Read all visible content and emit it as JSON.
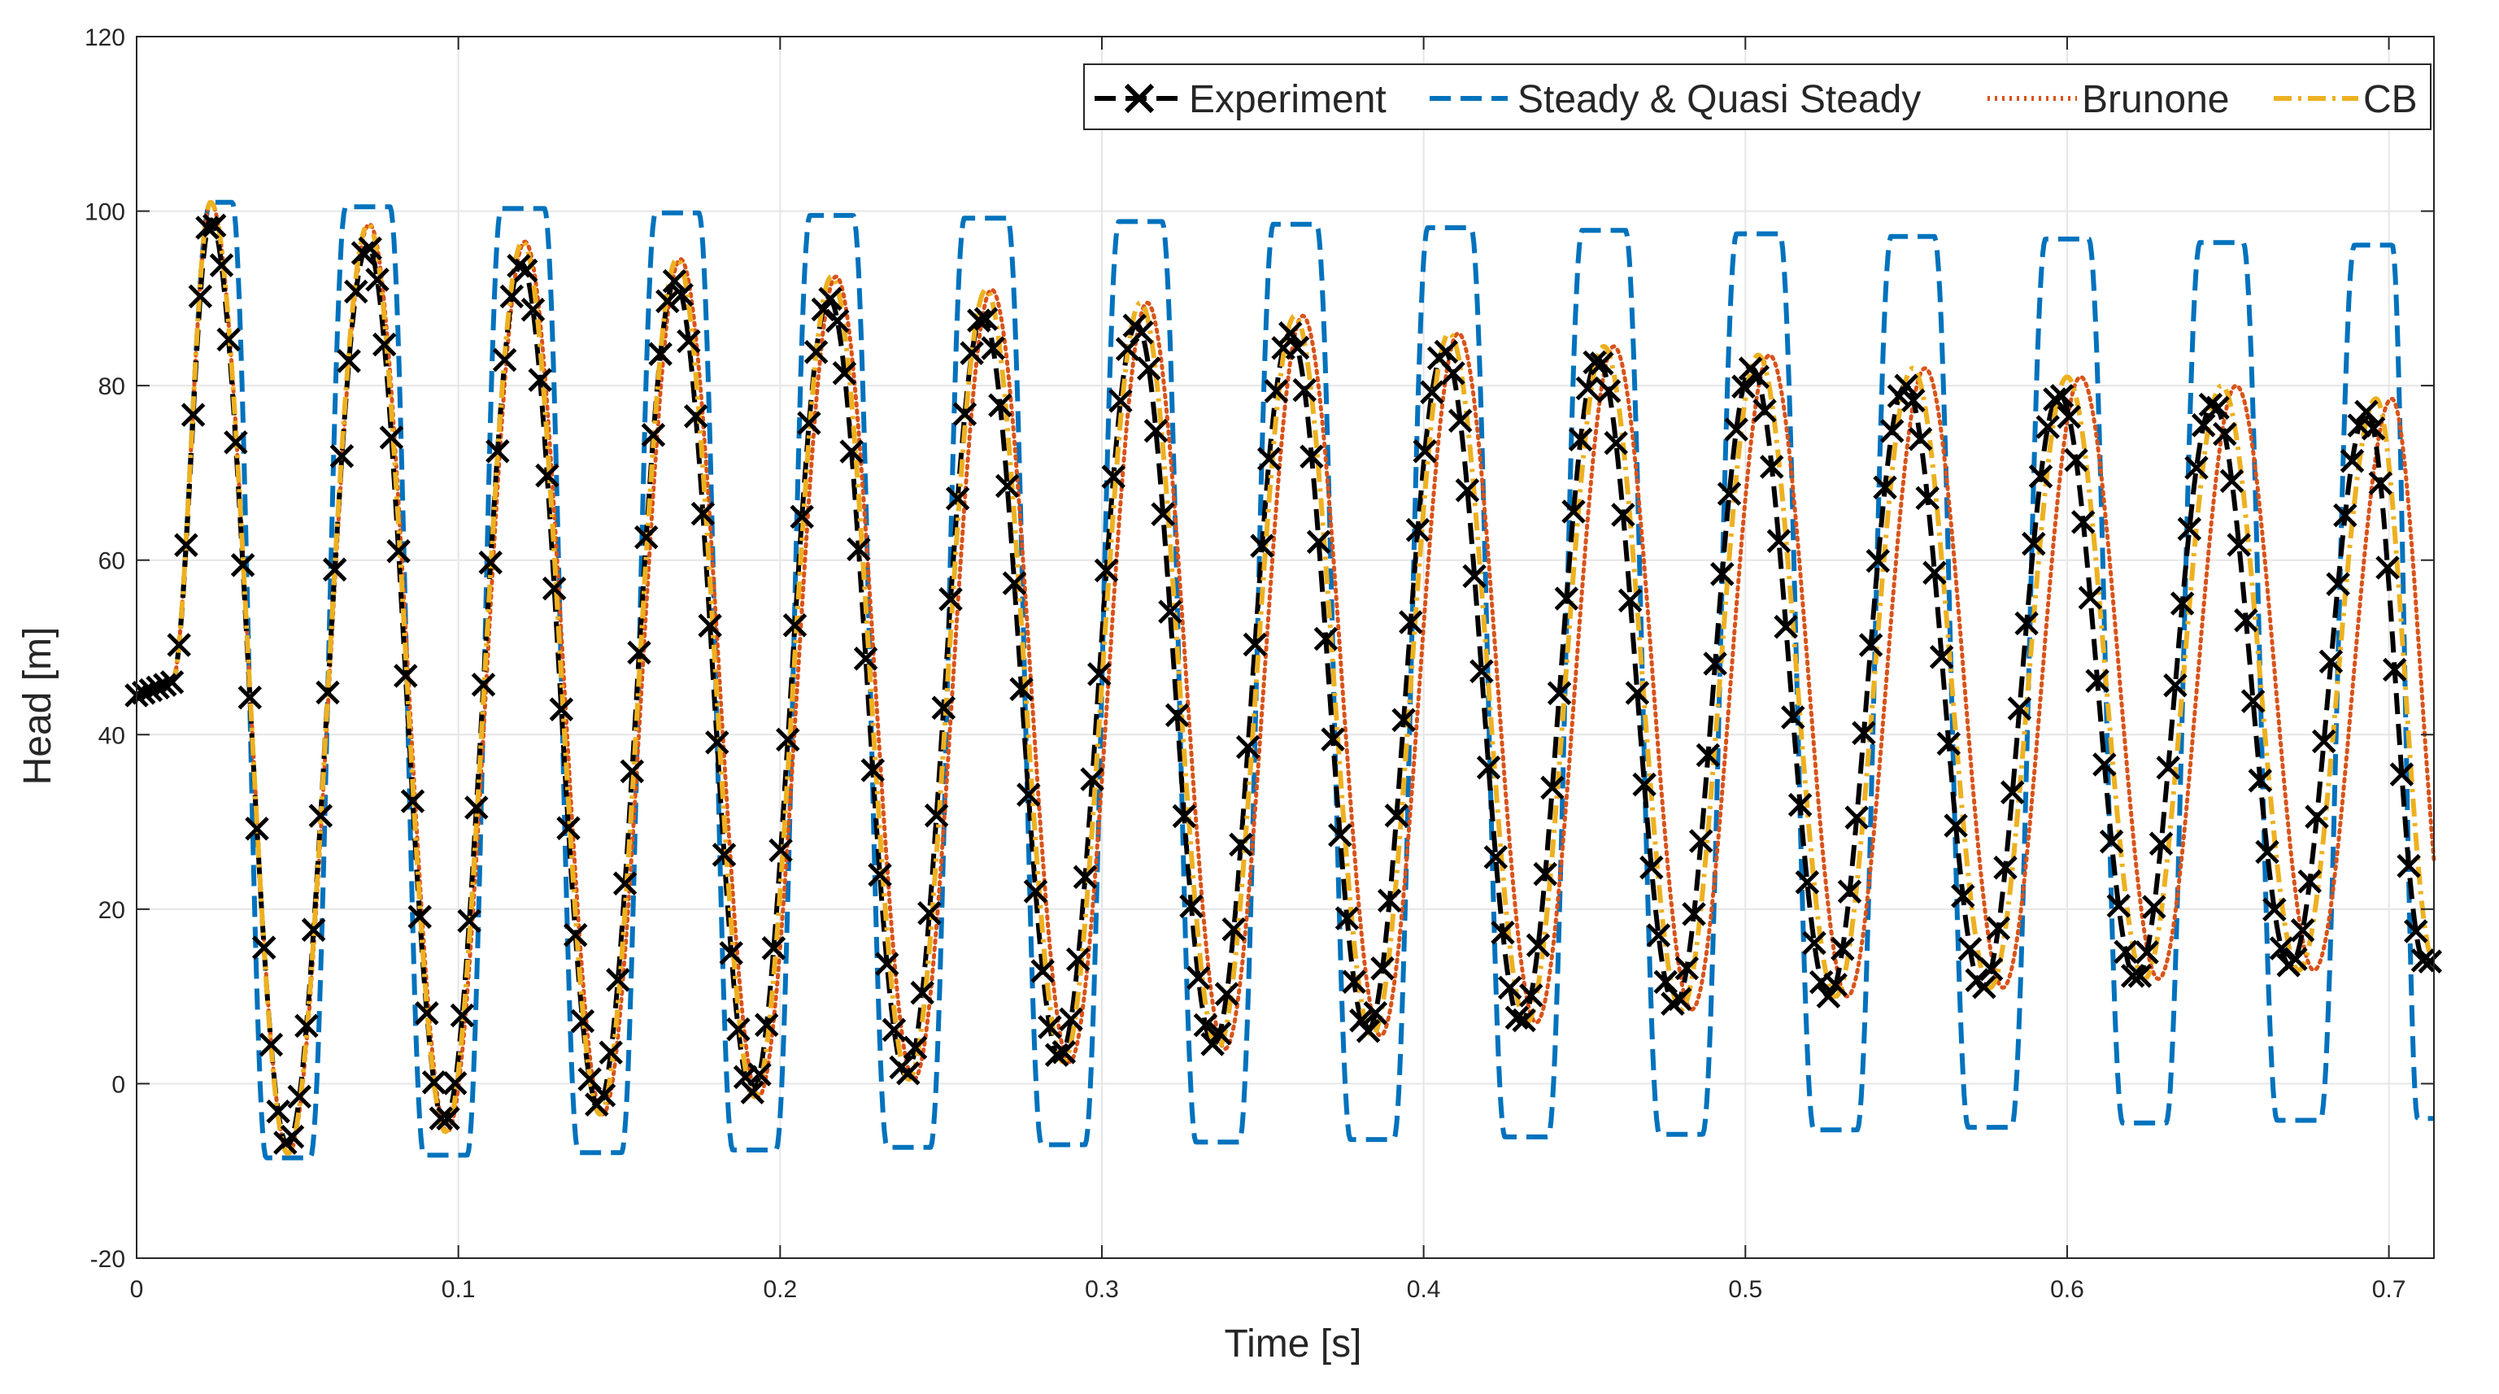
{
  "chart_data": {
    "type": "line",
    "title": "",
    "xlabel": "Time [s]",
    "ylabel": "Head [m]",
    "xlim": [
      0,
      0.714
    ],
    "ylim": [
      -20,
      120
    ],
    "xticks": [
      0,
      0.1,
      0.2,
      0.3,
      0.4,
      0.5,
      0.6,
      0.7
    ],
    "xtick_labels": [
      "0",
      "0.1",
      "0.2",
      "0.3",
      "0.4",
      "0.5",
      "0.6",
      "0.7"
    ],
    "yticks": [
      -20,
      0,
      20,
      40,
      60,
      80,
      100,
      120
    ],
    "ytick_labels": [
      "-20",
      "0",
      "20",
      "40",
      "60",
      "80",
      "100",
      "120"
    ],
    "grid": true,
    "legend_position": "top-right",
    "time_end": 0.714,
    "initial_head": 44.5,
    "rise_start_time": 0.011,
    "period": 0.0475,
    "mean_head": 45.5,
    "peak_head_series": [
      {
        "t": 0.023,
        "steady": 101,
        "damped": 101,
        "exp": 99
      },
      {
        "t": 0.072,
        "steady": 100.5,
        "damped": 98.5,
        "exp": 96
      },
      {
        "t": 0.12,
        "steady": 100.3,
        "damped": 96.5,
        "exp": 94
      },
      {
        "t": 0.168,
        "steady": 99.8,
        "damped": 94.5,
        "exp": 92
      },
      {
        "t": 0.216,
        "steady": 99.5,
        "damped": 92.5,
        "exp": 90
      },
      {
        "t": 0.264,
        "steady": 99.2,
        "damped": 91,
        "exp": 88
      },
      {
        "t": 0.312,
        "steady": 98.8,
        "damped": 89.5,
        "exp": 87
      },
      {
        "t": 0.36,
        "steady": 98.5,
        "damped": 88,
        "exp": 86
      },
      {
        "t": 0.408,
        "steady": 98.1,
        "damped": 86,
        "exp": 84
      },
      {
        "t": 0.456,
        "steady": 97.8,
        "damped": 84.5,
        "exp": 83
      },
      {
        "t": 0.504,
        "steady": 97.4,
        "damped": 83.5,
        "exp": 82
      },
      {
        "t": 0.552,
        "steady": 97.1,
        "damped": 82,
        "exp": 80
      },
      {
        "t": 0.6,
        "steady": 96.8,
        "damped": 81,
        "exp": 79
      },
      {
        "t": 0.648,
        "steady": 96.4,
        "damped": 80,
        "exp": 78
      },
      {
        "t": 0.696,
        "steady": 96.1,
        "damped": 78.5,
        "exp": 77
      }
    ],
    "trough_head_series": [
      {
        "t": 0.047,
        "steady": -8.5,
        "damped": -8,
        "exp": -7
      },
      {
        "t": 0.096,
        "steady": -8.2,
        "damped": -5.5,
        "exp": -4.5
      },
      {
        "t": 0.144,
        "steady": -7.9,
        "damped": -3.5,
        "exp": -2.5
      },
      {
        "t": 0.192,
        "steady": -7.6,
        "damped": -1.5,
        "exp": -1
      },
      {
        "t": 0.24,
        "steady": -7.3,
        "damped": 0.5,
        "exp": 1
      },
      {
        "t": 0.288,
        "steady": -7.0,
        "damped": 2.5,
        "exp": 3
      },
      {
        "t": 0.336,
        "steady": -6.7,
        "damped": 4,
        "exp": 4.5
      },
      {
        "t": 0.384,
        "steady": -6.4,
        "damped": 5.5,
        "exp": 6
      },
      {
        "t": 0.432,
        "steady": -6.1,
        "damped": 7,
        "exp": 7
      },
      {
        "t": 0.48,
        "steady": -5.8,
        "damped": 8.5,
        "exp": 9
      },
      {
        "t": 0.528,
        "steady": -5.3,
        "damped": 10,
        "exp": 10
      },
      {
        "t": 0.576,
        "steady": -5.0,
        "damped": 11,
        "exp": 11
      },
      {
        "t": 0.624,
        "steady": -4.5,
        "damped": 12,
        "exp": 12
      },
      {
        "t": 0.672,
        "steady": -4.2,
        "damped": 13,
        "exp": 13.5
      },
      {
        "t": 0.714,
        "steady": -4.0,
        "damped": 14,
        "exp": 14
      }
    ],
    "series": [
      {
        "name": "Experiment",
        "key": "exp",
        "color": "#000000",
        "style": "dashed-x"
      },
      {
        "name": "Steady & Quasi Steady",
        "key": "steady",
        "color": "#0072BD",
        "style": "dashed"
      },
      {
        "name": "Brunone",
        "key": "brunone",
        "color": "#D95319",
        "style": "dotted"
      },
      {
        "name": "CB",
        "key": "cb",
        "color": "#EDB120",
        "style": "dashdot"
      }
    ]
  }
}
